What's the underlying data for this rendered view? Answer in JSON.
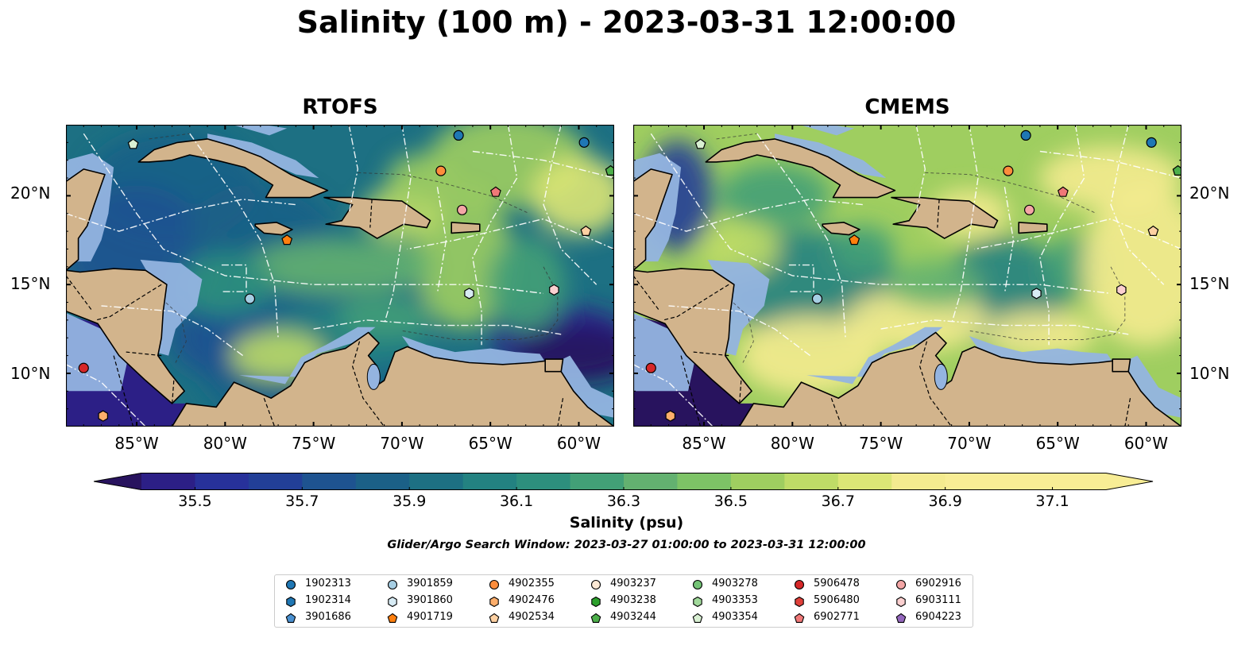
{
  "title": "Salinity (100 m) - 2023-03-31 12:00:00",
  "panels": [
    {
      "title": "RTOFS",
      "scheme": "rtofs"
    },
    {
      "title": "CMEMS",
      "scheme": "cmems"
    }
  ],
  "map": {
    "lon_range": [
      -89,
      -58
    ],
    "lat_range": [
      7,
      24
    ],
    "lon_ticks": [
      -85,
      -80,
      -75,
      -70,
      -65,
      -60
    ],
    "lon_tick_labels": [
      "85°W",
      "80°W",
      "75°W",
      "70°W",
      "65°W",
      "60°W"
    ],
    "lat_ticks": [
      10,
      15,
      20
    ],
    "lat_tick_labels": [
      "10°N",
      "15°N",
      "20°N"
    ],
    "colors": {
      "land": "#d2b48c",
      "shelf": "#94b4e0",
      "coast": "#000000",
      "border": "#000000",
      "transect": "#ffffff"
    }
  },
  "colorbar": {
    "label": "Salinity (psu)",
    "min": 35.4,
    "max": 37.2,
    "step": 0.1,
    "extend": "both",
    "colors": [
      "#28135e",
      "#2c1f86",
      "#27319a",
      "#223f97",
      "#1e5390",
      "#1b6087",
      "#1d7083",
      "#238281",
      "#2d8f7d",
      "#42a077",
      "#63b170",
      "#7dc366",
      "#9fce60",
      "#bfdc67",
      "#dce676",
      "#f4eb8f",
      "#f8ed95"
    ],
    "tick_values": [
      35.5,
      35.7,
      35.9,
      36.1,
      36.3,
      36.5,
      36.7,
      36.9,
      37.1
    ],
    "tick_labels": [
      "35.5",
      "35.7",
      "35.9",
      "36.1",
      "36.3",
      "36.5",
      "36.7",
      "36.9",
      "37.1"
    ]
  },
  "search_window": "Glider/Argo Search Window: 2023-03-27 01:00:00 to 2023-03-31 12:00:00",
  "floats": [
    {
      "id": "1902313",
      "marker": "circle",
      "color": "#1f77b4",
      "lon": -59.7,
      "lat": 23.0
    },
    {
      "id": "1902314",
      "marker": "hexagon",
      "color": "#1f77b4",
      "lon": null,
      "lat": null
    },
    {
      "id": "3901686",
      "marker": "pentagon",
      "color": "#4a90d0",
      "lon": null,
      "lat": null
    },
    {
      "id": "3901859",
      "marker": "circle",
      "color": "#a6cee3",
      "lon": -78.6,
      "lat": 14.2
    },
    {
      "id": "3901860",
      "marker": "hexagon",
      "color": "#d7ebf4",
      "lon": -66.2,
      "lat": 14.5
    },
    {
      "id": "4901719",
      "marker": "pentagon",
      "color": "#ff7f0e",
      "lon": -76.5,
      "lat": 17.5
    },
    {
      "id": "4902355",
      "marker": "circle",
      "color": "#fd8d3c",
      "lon": -67.8,
      "lat": 21.4
    },
    {
      "id": "4902476",
      "marker": "hexagon",
      "color": "#fdae6b",
      "lon": -86.9,
      "lat": 7.6
    },
    {
      "id": "4902534",
      "marker": "pentagon",
      "color": "#fdd0a2",
      "lon": -59.6,
      "lat": 18.0
    },
    {
      "id": "4903237",
      "marker": "circle",
      "color": "#fde9d5",
      "lon": null,
      "lat": null
    },
    {
      "id": "4903238",
      "marker": "hexagon",
      "color": "#2ca02c",
      "lon": null,
      "lat": null
    },
    {
      "id": "4903244",
      "marker": "pentagon",
      "color": "#4daf4a",
      "lon": -58.2,
      "lat": 21.4
    },
    {
      "id": "4903278",
      "marker": "circle",
      "color": "#74c476",
      "lon": null,
      "lat": null
    },
    {
      "id": "4903353",
      "marker": "hexagon",
      "color": "#a1d99b",
      "lon": null,
      "lat": null
    },
    {
      "id": "4903354",
      "marker": "pentagon",
      "color": "#d9f0d3",
      "lon": -85.2,
      "lat": 22.9
    },
    {
      "id": "5906478",
      "marker": "circle",
      "color": "#d62728",
      "lon": -88.0,
      "lat": 10.3
    },
    {
      "id": "5906480",
      "marker": "hexagon",
      "color": "#e0403a",
      "lon": null,
      "lat": null
    },
    {
      "id": "6902771",
      "marker": "pentagon",
      "color": "#f07878",
      "lon": -64.7,
      "lat": 20.2
    },
    {
      "id": "6902916",
      "marker": "circle",
      "color": "#f4a6a6",
      "lon": -66.6,
      "lat": 19.2
    },
    {
      "id": "6903111",
      "marker": "hexagon",
      "color": "#fbd0d0",
      "lon": -61.4,
      "lat": 14.7
    },
    {
      "id": "6904223",
      "marker": "pentagon",
      "color": "#9467bd",
      "lon": null,
      "lat": null
    }
  ],
  "extra_markers": [
    {
      "marker": "circle",
      "color": "#1f77b4",
      "lon": -66.8,
      "lat": 23.4
    }
  ]
}
